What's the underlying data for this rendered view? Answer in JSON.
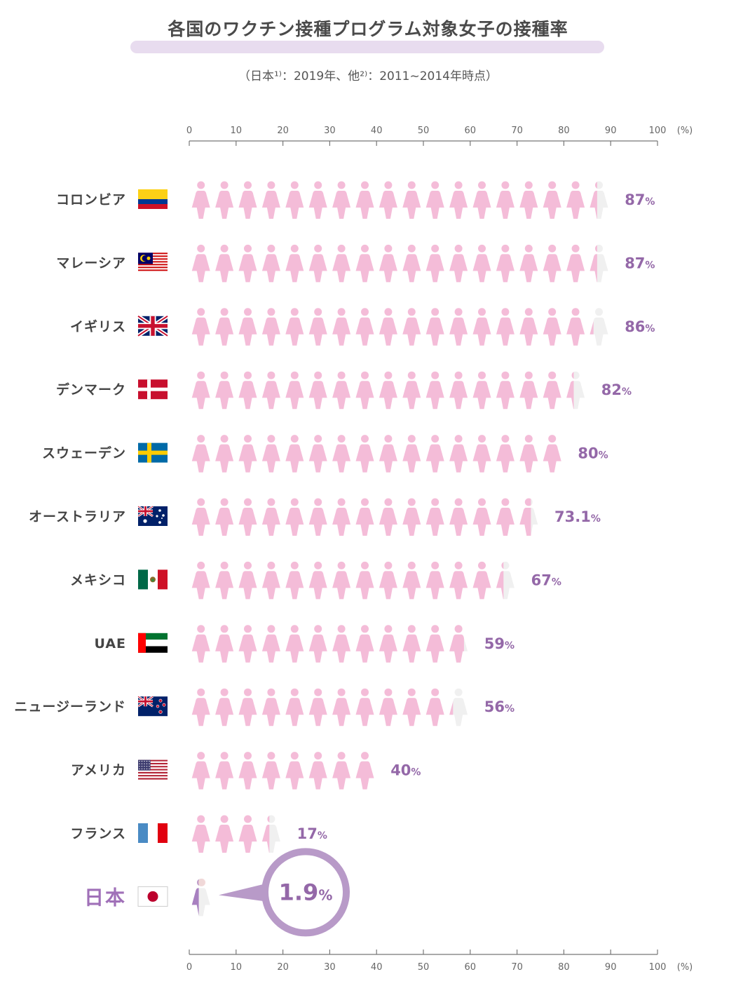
{
  "title": "各国のワクチン接種プログラム対象女子の接種率",
  "subtitle": "（日本¹⁾：2019年、他²⁾：2011~2014年時点）",
  "chart_data": {
    "type": "bar",
    "categories": [
      "コロンビア",
      "マレーシア",
      "イギリス",
      "デンマーク",
      "スウェーデン",
      "オーストラリア",
      "メキシコ",
      "UAE",
      "ニュージーランド",
      "アメリカ",
      "フランス",
      "日本"
    ],
    "values": [
      87,
      87,
      86,
      82,
      80,
      73.1,
      67,
      59,
      56,
      40,
      17,
      1.9
    ],
    "value_labels": [
      "87",
      "87",
      "86",
      "82",
      "80",
      "73.1",
      "67",
      "59",
      "56",
      "40",
      "17",
      "1.9"
    ],
    "unit": "%",
    "xlim": [
      0,
      100
    ],
    "x_ticks": [
      "0",
      "10",
      "20",
      "30",
      "40",
      "50",
      "60",
      "70",
      "80",
      "90",
      "100"
    ],
    "axis_unit_label": "(%)",
    "icon_unit": 5,
    "highlight_category": "日本",
    "flags": [
      "colombia-flag",
      "malaysia-flag",
      "uk-flag",
      "denmark-flag",
      "sweden-flag",
      "australia-flag",
      "mexico-flag",
      "uae-flag",
      "new-zealand-flag",
      "usa-flag",
      "france-flag",
      "japan-flag"
    ],
    "colors": {
      "icon_fill": "#f4bcd8",
      "icon_partial": "#f0f0f0",
      "value_text": "#9468a8",
      "japan_label": "#a070b8",
      "japan_icon": "#a880c0",
      "bubble_ring": "#b89ac8",
      "axis": "#777777",
      "label_text": "#444444"
    }
  }
}
